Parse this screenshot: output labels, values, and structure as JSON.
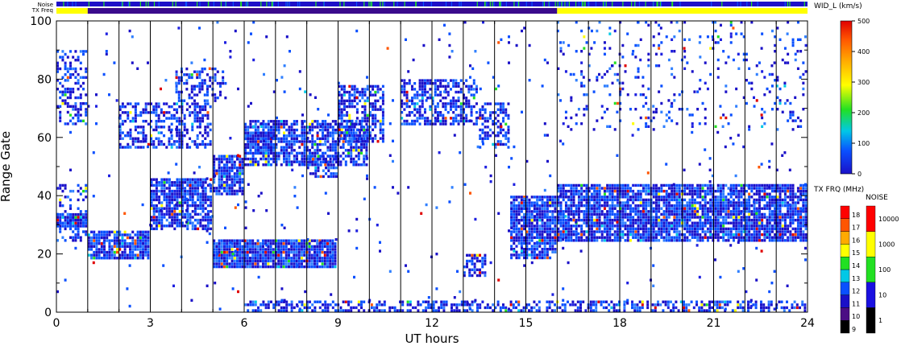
{
  "chart_data": {
    "type": "heatmap",
    "top_bars": {
      "noise_label": "Noise",
      "txfreq_label": "TX Freq"
    },
    "xlabel": "UT hours",
    "ylabel": "Range Gate",
    "xlim": [
      0,
      24
    ],
    "ylim": [
      0,
      100
    ],
    "xticks": [
      "0",
      "3",
      "6",
      "9",
      "12",
      "15",
      "18",
      "21",
      "24"
    ],
    "yticks": [
      "0",
      "20",
      "40",
      "60",
      "80",
      "100"
    ],
    "hour_lines": [
      1,
      2,
      3,
      4,
      5,
      6,
      7,
      8,
      9,
      10,
      11,
      12,
      13,
      14,
      15,
      16,
      17,
      18,
      19,
      20,
      21,
      22,
      23
    ],
    "txfreq_segments": [
      {
        "x0": 0,
        "x1": 1,
        "color": "#ffff00"
      },
      {
        "x0": 1,
        "x1": 16,
        "color": "#3a0a8c"
      },
      {
        "x0": 16,
        "x1": 24,
        "color": "#ffff00"
      }
    ],
    "echo_regions": [
      {
        "x0": 0.0,
        "x1": 1.0,
        "y0": 29,
        "y1": 34,
        "density": 0.95
      },
      {
        "x0": 0.0,
        "x1": 1.0,
        "y0": 24,
        "y1": 44,
        "density": 0.35
      },
      {
        "x0": 1.0,
        "x1": 3.0,
        "y0": 18,
        "y1": 28,
        "density": 0.85
      },
      {
        "x0": 3.0,
        "x1": 5.0,
        "y0": 28,
        "y1": 46,
        "density": 0.8
      },
      {
        "x0": 5.0,
        "x1": 6.0,
        "y0": 40,
        "y1": 54,
        "density": 0.8
      },
      {
        "x0": 6.0,
        "x1": 7.0,
        "y0": 54,
        "y1": 62,
        "density": 0.85
      },
      {
        "x0": 6.0,
        "x1": 10.0,
        "y0": 50,
        "y1": 66,
        "density": 0.7
      },
      {
        "x0": 8.0,
        "x1": 9.0,
        "y0": 46,
        "y1": 54,
        "density": 0.6
      },
      {
        "x0": 9.0,
        "x1": 10.5,
        "y0": 58,
        "y1": 78,
        "density": 0.6
      },
      {
        "x0": 11.0,
        "x1": 13.5,
        "y0": 64,
        "y1": 80,
        "density": 0.55
      },
      {
        "x0": 13.5,
        "x1": 14.5,
        "y0": 56,
        "y1": 72,
        "density": 0.55
      },
      {
        "x0": 5.0,
        "x1": 9.0,
        "y0": 15,
        "y1": 25,
        "density": 0.95
      },
      {
        "x0": 13.0,
        "x1": 13.8,
        "y0": 12,
        "y1": 20,
        "density": 0.7
      },
      {
        "x0": 14.5,
        "x1": 16.0,
        "y0": 18,
        "y1": 40,
        "density": 0.85
      },
      {
        "x0": 16.0,
        "x1": 24.0,
        "y0": 24,
        "y1": 44,
        "density": 0.85
      },
      {
        "x0": 0.0,
        "x1": 1.0,
        "y0": 64,
        "y1": 90,
        "density": 0.35
      },
      {
        "x0": 2.0,
        "x1": 5.0,
        "y0": 56,
        "y1": 72,
        "density": 0.45
      },
      {
        "x0": 3.8,
        "x1": 5.5,
        "y0": 72,
        "y1": 84,
        "density": 0.4
      },
      {
        "x0": 16.0,
        "x1": 24.0,
        "y0": 62,
        "y1": 100,
        "density": 0.08
      },
      {
        "x0": 6.0,
        "x1": 24.0,
        "y0": 0,
        "y1": 4,
        "density": 0.55
      },
      {
        "x0": 0.0,
        "x1": 24.0,
        "y0": 0,
        "y1": 100,
        "density": 0.015
      }
    ],
    "width_colorbar": {
      "title": "WID_L (km/s)",
      "ticks": [
        "0",
        "100",
        "200",
        "300",
        "400",
        "500"
      ],
      "min": 0,
      "max": 500
    },
    "freq_colorbar": {
      "title": "TX FRQ (MHz)",
      "levels": [
        {
          "label": "9",
          "color": "#000000"
        },
        {
          "label": "10",
          "color": "#4b0d84"
        },
        {
          "label": "11",
          "color": "#1a10c8"
        },
        {
          "label": "12",
          "color": "#0a50ff"
        },
        {
          "label": "13",
          "color": "#00c8e6"
        },
        {
          "label": "14",
          "color": "#22e022"
        },
        {
          "label": "15",
          "color": "#ffff00"
        },
        {
          "label": "16",
          "color": "#ffaa00"
        },
        {
          "label": "17",
          "color": "#ff5500"
        },
        {
          "label": "18",
          "color": "#ff0000"
        }
      ]
    },
    "noise_colorbar": {
      "title": "NOISE",
      "levels": [
        {
          "label": "1",
          "color": "#000000"
        },
        {
          "label": "10",
          "color": "#1a10e0"
        },
        {
          "label": "100",
          "color": "#22e022"
        },
        {
          "label": "1000",
          "color": "#ffff00"
        },
        {
          "label": "10000",
          "color": "#ff0000"
        }
      ]
    }
  }
}
